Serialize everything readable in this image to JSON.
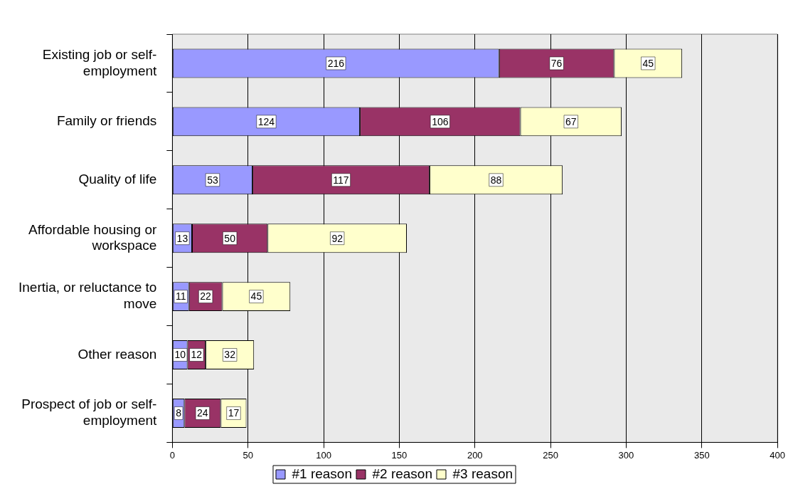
{
  "chart_data": {
    "type": "bar",
    "orientation": "horizontal",
    "stacked": true,
    "categories": [
      "Existing job or self-employment",
      "Family or friends",
      "Quality of life",
      "Affordable housing or workspace",
      "Inertia, or reluctance to move",
      "Other reason",
      "Prospect of job or self-employment"
    ],
    "series": [
      {
        "name": "#1 reason",
        "color": "#9999ff",
        "values": [
          216,
          124,
          53,
          13,
          11,
          10,
          8
        ]
      },
      {
        "name": "#2 reason",
        "color": "#993366",
        "values": [
          76,
          106,
          117,
          50,
          22,
          12,
          24
        ]
      },
      {
        "name": "#3 reason",
        "color": "#ffffcc",
        "values": [
          45,
          67,
          88,
          92,
          45,
          32,
          17
        ]
      }
    ],
    "xlim": [
      0,
      400
    ],
    "xticks": [
      0,
      50,
      100,
      150,
      200,
      250,
      300,
      350,
      400
    ],
    "grid": "x",
    "legend": "bottom",
    "data_labels": true
  }
}
